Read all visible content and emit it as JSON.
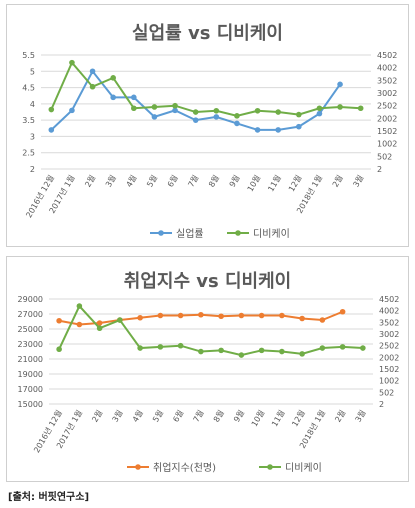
{
  "source": "[출처: 버핏연구소]",
  "chart_data": [
    {
      "type": "line",
      "title": "실업률 vs 디비케이",
      "categories": [
        "2016년 12월",
        "2017년 1월",
        "2월",
        "3월",
        "4월",
        "5월",
        "6월",
        "7월",
        "8월",
        "9월",
        "10월",
        "11월",
        "12월",
        "2018년 1월",
        "2월",
        "3월"
      ],
      "y_left": {
        "ticks": [
          "5.5",
          "5",
          "4.5",
          "4",
          "3.5",
          "3",
          "2.5",
          "2"
        ],
        "min": 2,
        "max": 5.5
      },
      "y_right": {
        "ticks": [
          "4502",
          "4002",
          "3502",
          "3002",
          "2502",
          "2002",
          "1502",
          "1002",
          "502",
          "2"
        ],
        "min": 2,
        "max": 4502
      },
      "series": [
        {
          "name": "실업률",
          "axis": "left",
          "color": "#5B9BD5",
          "values": [
            3.2,
            3.8,
            5.0,
            4.2,
            4.2,
            3.6,
            3.8,
            3.5,
            3.6,
            3.4,
            3.2,
            3.2,
            3.3,
            3.7,
            4.6,
            null
          ]
        },
        {
          "name": "디비케이",
          "axis": "right",
          "color": "#70AD47",
          "values": [
            2350,
            4200,
            3250,
            3600,
            2400,
            2450,
            2500,
            2250,
            2300,
            2100,
            2300,
            2250,
            2150,
            2400,
            2450,
            2400
          ]
        }
      ],
      "legend_position": "bottom",
      "grid": true
    },
    {
      "type": "line",
      "title": "취업지수 vs 디비케이",
      "categories": [
        "2016년 12월",
        "2017년 1월",
        "2월",
        "3월",
        "4월",
        "5월",
        "6월",
        "7월",
        "8월",
        "9월",
        "10월",
        "11월",
        "12월",
        "2018년 1월",
        "2월",
        "3월"
      ],
      "y_left": {
        "ticks": [
          "29000",
          "27000",
          "25000",
          "23000",
          "21000",
          "19000",
          "17000",
          "15000"
        ],
        "min": 15000,
        "max": 29000
      },
      "y_right": {
        "ticks": [
          "4502",
          "4002",
          "3502",
          "3002",
          "2502",
          "2002",
          "1502",
          "1002",
          "502",
          "2"
        ],
        "min": 2,
        "max": 4502
      },
      "series": [
        {
          "name": "취업지수(천명)",
          "axis": "left",
          "color": "#ED7D31",
          "values": [
            26100,
            25600,
            25800,
            26200,
            26500,
            26800,
            26800,
            26900,
            26700,
            26800,
            26800,
            26800,
            26400,
            26200,
            27300,
            null
          ]
        },
        {
          "name": "디비케이",
          "axis": "right",
          "color": "#70AD47",
          "values": [
            2350,
            4200,
            3250,
            3600,
            2400,
            2450,
            2500,
            2250,
            2300,
            2100,
            2300,
            2250,
            2150,
            2400,
            2450,
            2400
          ]
        }
      ],
      "legend_position": "bottom",
      "grid": true
    }
  ]
}
